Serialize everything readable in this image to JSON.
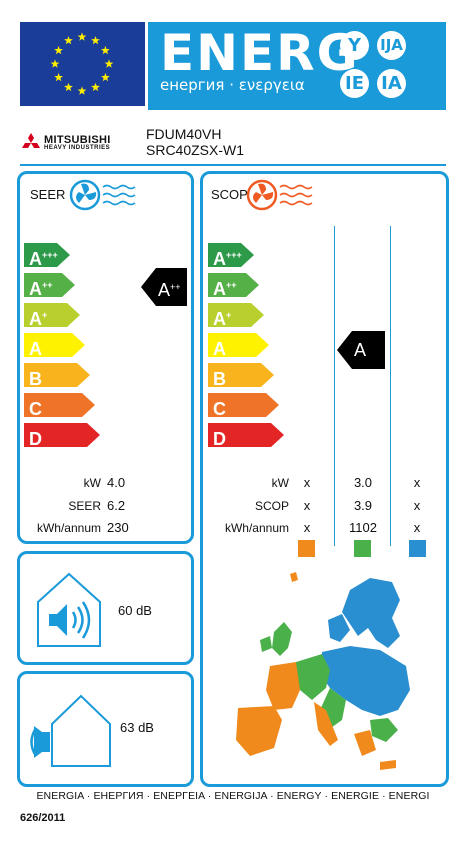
{
  "header": {
    "energy_word": "ENERG",
    "energy_subtitle": "енергия · ενεργεια",
    "lang_codes": [
      "Y",
      "IJA",
      "IE",
      "IA"
    ]
  },
  "brand": {
    "name": "MITSUBISHI",
    "sub": "HEAVY INDUSTRIES"
  },
  "models": {
    "indoor": "FDUM40VH",
    "outdoor": "SRC40ZSX-W1"
  },
  "scale_labels": [
    "A",
    "A",
    "A",
    "A",
    "B",
    "C",
    "D"
  ],
  "scale_sups": [
    "+++",
    "++",
    "+",
    "",
    "",
    "",
    ""
  ],
  "scale_colors": [
    "#2c9a48",
    "#55b047",
    "#b9cf2d",
    "#fef200",
    "#f9b41d",
    "#ef7427",
    "#e32526"
  ],
  "cooling": {
    "title": "SEER",
    "class_letter": "A",
    "class_sup": "++",
    "rows": [
      {
        "label": "kW",
        "value": "4.0"
      },
      {
        "label": "SEER",
        "value": "6.2"
      },
      {
        "label": "kWh/annum",
        "value": "230"
      }
    ]
  },
  "heating": {
    "title": "SCOP",
    "class_letter": "A",
    "rows": [
      {
        "label": "kW",
        "cols": [
          "x",
          "3.0",
          "x"
        ]
      },
      {
        "label": "SCOP",
        "cols": [
          "x",
          "3.9",
          "x"
        ]
      },
      {
        "label": "kWh/annum",
        "cols": [
          "x",
          "1102",
          "x"
        ]
      }
    ],
    "zone_colors": [
      "#f08a1c",
      "#4ab04a",
      "#2a8fd0"
    ]
  },
  "sound": {
    "indoor": "60 dB",
    "outdoor": "63 dB"
  },
  "footer": {
    "languages": "ENERGIA · ЕНЕРГИЯ · ΕΝΕΡΓΕΙΑ · ENERGIJA · ENERGY · ENERGIE · ENERGI",
    "regulation": "626/2011"
  }
}
